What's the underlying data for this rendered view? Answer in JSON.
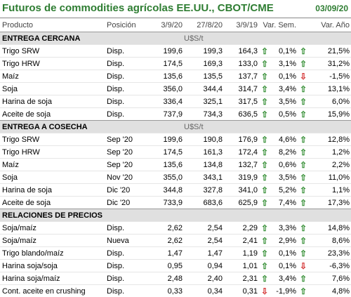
{
  "title": "Futuros de commodities agrícolas EE.UU., CBOT/CME",
  "date": "03/09/20",
  "headers": [
    "Producto",
    "Posición",
    "3/9/20",
    "27/8/20",
    "3/9/19",
    "Var. Sem.",
    "Var. Año"
  ],
  "sections": [
    {
      "name": "ENTREGA CERCANA",
      "unit": "U$S/t",
      "rows": [
        {
          "product": "Trigo SRW",
          "position": "Disp.",
          "v1": "199,6",
          "v2": "199,3",
          "v3": "164,3",
          "arrow1": "up",
          "week": "0,1%",
          "arrow2": "up",
          "year": "21,5%"
        },
        {
          "product": "Trigo HRW",
          "position": "Disp.",
          "v1": "174,5",
          "v2": "169,3",
          "v3": "133,0",
          "arrow1": "up",
          "week": "3,1%",
          "arrow2": "up",
          "year": "31,2%"
        },
        {
          "product": "Maíz",
          "position": "Disp.",
          "v1": "135,6",
          "v2": "135,5",
          "v3": "137,7",
          "arrow1": "up",
          "week": "0,1%",
          "arrow2": "down",
          "year": "-1,5%"
        },
        {
          "product": "Soja",
          "position": "Disp.",
          "v1": "356,0",
          "v2": "344,4",
          "v3": "314,7",
          "arrow1": "up",
          "week": "3,4%",
          "arrow2": "up",
          "year": "13,1%"
        },
        {
          "product": "Harina de soja",
          "position": "Disp.",
          "v1": "336,4",
          "v2": "325,1",
          "v3": "317,5",
          "arrow1": "up",
          "week": "3,5%",
          "arrow2": "up",
          "year": "6,0%"
        },
        {
          "product": "Aceite de soja",
          "position": "Disp.",
          "v1": "737,9",
          "v2": "734,3",
          "v3": "636,5",
          "arrow1": "up",
          "week": "0,5%",
          "arrow2": "up",
          "year": "15,9%"
        }
      ]
    },
    {
      "name": "ENTREGA A COSECHA",
      "unit": "U$S/t",
      "rows": [
        {
          "product": "Trigo SRW",
          "position": "Sep '20",
          "v1": "199,6",
          "v2": "190,8",
          "v3": "176,9",
          "arrow1": "up",
          "week": "4,6%",
          "arrow2": "up",
          "year": "12,8%"
        },
        {
          "product": "Trigo HRW",
          "position": "Sep '20",
          "v1": "174,5",
          "v2": "161,3",
          "v3": "172,4",
          "arrow1": "up",
          "week": "8,2%",
          "arrow2": "up",
          "year": "1,2%"
        },
        {
          "product": "Maíz",
          "position": "Sep '20",
          "v1": "135,6",
          "v2": "134,8",
          "v3": "132,7",
          "arrow1": "up",
          "week": "0,6%",
          "arrow2": "up",
          "year": "2,2%"
        },
        {
          "product": "Soja",
          "position": "Nov '20",
          "v1": "355,0",
          "v2": "343,1",
          "v3": "319,9",
          "arrow1": "up",
          "week": "3,5%",
          "arrow2": "up",
          "year": "11,0%"
        },
        {
          "product": "Harina de soja",
          "position": "Dic '20",
          "v1": "344,8",
          "v2": "327,8",
          "v3": "341,0",
          "arrow1": "up",
          "week": "5,2%",
          "arrow2": "up",
          "year": "1,1%"
        },
        {
          "product": "Aceite de soja",
          "position": "Dic '20",
          "v1": "733,9",
          "v2": "683,6",
          "v3": "625,9",
          "arrow1": "up",
          "week": "7,4%",
          "arrow2": "up",
          "year": "17,3%"
        }
      ]
    },
    {
      "name": "RELACIONES DE PRECIOS",
      "unit": "",
      "rows": [
        {
          "product": "Soja/maíz",
          "position": "Disp.",
          "v1": "2,62",
          "v2": "2,54",
          "v3": "2,29",
          "arrow1": "up",
          "week": "3,3%",
          "arrow2": "up",
          "year": "14,8%"
        },
        {
          "product": "Soja/maíz",
          "position": "Nueva",
          "v1": "2,62",
          "v2": "2,54",
          "v3": "2,41",
          "arrow1": "up",
          "week": "2,9%",
          "arrow2": "up",
          "year": "8,6%"
        },
        {
          "product": "Trigo blando/maíz",
          "position": "Disp.",
          "v1": "1,47",
          "v2": "1,47",
          "v3": "1,19",
          "arrow1": "up",
          "week": "0,1%",
          "arrow2": "up",
          "year": "23,3%"
        },
        {
          "product": "Harina soja/soja",
          "position": "Disp.",
          "v1": "0,95",
          "v2": "0,94",
          "v3": "1,01",
          "arrow1": "up",
          "week": "0,1%",
          "arrow2": "down",
          "year": "-6,3%"
        },
        {
          "product": "Harina soja/maíz",
          "position": "Disp.",
          "v1": "2,48",
          "v2": "2,40",
          "v3": "2,31",
          "arrow1": "up",
          "week": "3,4%",
          "arrow2": "up",
          "year": "7,6%"
        },
        {
          "product": "Cont. aceite en crushing",
          "position": "Disp.",
          "v1": "0,33",
          "v2": "0,34",
          "v3": "0,31",
          "arrow1": "down",
          "week": "-1,9%",
          "arrow2": "up",
          "year": "4,8%"
        }
      ]
    }
  ],
  "colors": {
    "accent": "#2e7d32",
    "up": "#2e8b2e",
    "down": "#d32f2f",
    "section_bg": "#e0e0e0"
  },
  "icons": {
    "up": "arrow-up-icon",
    "down": "arrow-down-icon"
  }
}
